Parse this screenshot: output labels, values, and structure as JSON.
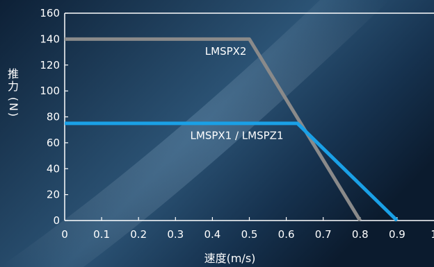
{
  "colors": {
    "background_dark": "#0c1d31",
    "background_light": "#3d6a8f",
    "axis": "#ffffff",
    "text": "#ffffff"
  },
  "chart_data": {
    "type": "line",
    "title": "",
    "xlabel": "速度(m/s)",
    "ylabel": "推力(N)",
    "xlim": [
      0,
      1.0
    ],
    "ylim": [
      0,
      160
    ],
    "xticks": [
      0,
      0.1,
      0.2,
      0.3,
      0.4,
      0.5,
      0.6,
      0.7,
      0.8,
      0.9,
      1
    ],
    "xtick_labels": [
      "0",
      "0.1",
      "0.2",
      "0.3",
      "0.4",
      "0.5",
      "0.6",
      "0.7",
      "0.8",
      "0.9",
      "1"
    ],
    "yticks": [
      0,
      20,
      40,
      60,
      80,
      100,
      120,
      140,
      160
    ],
    "ytick_labels": [
      "0",
      "20",
      "40",
      "60",
      "80",
      "100",
      "120",
      "140",
      "160"
    ],
    "grid": false,
    "legend": "inline labels",
    "series": [
      {
        "name": "LMSPX2",
        "color": "#8a8a8a",
        "x": [
          0,
          0.5,
          0.8
        ],
        "y": [
          140,
          140,
          0
        ],
        "label_at": [
          0.38,
          128
        ]
      },
      {
        "name": "LMSPX1 / LMSPZ1",
        "color": "#1aa0e6",
        "x": [
          0,
          0.63,
          0.9
        ],
        "y": [
          75,
          75,
          0
        ],
        "label_at": [
          0.34,
          63
        ]
      }
    ]
  }
}
